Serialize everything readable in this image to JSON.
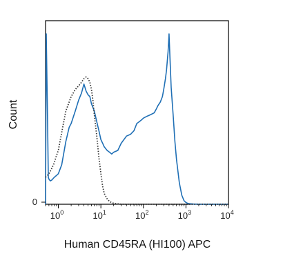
{
  "chart_data": {
    "type": "line",
    "title": "",
    "xlabel": "Human CD45RA (HI100) APC",
    "ylabel": "Count",
    "x_scale": "log",
    "xlim": [
      0.5,
      10000
    ],
    "ylim": [
      0,
      100
    ],
    "grid": false,
    "legend": "none",
    "x_ticks": [
      {
        "value": 1,
        "base": "10",
        "exp": "0"
      },
      {
        "value": 10,
        "base": "10",
        "exp": "1"
      },
      {
        "value": 100,
        "base": "10",
        "exp": "2"
      },
      {
        "value": 1000,
        "base": "10",
        "exp": "3"
      },
      {
        "value": 10000,
        "base": "10",
        "exp": "4"
      }
    ],
    "y_ticks": [
      {
        "value": 0,
        "label": "0"
      }
    ],
    "series": [
      {
        "style": "solid",
        "color": "#1f6fb5",
        "x": [
          0.5,
          0.52,
          0.55,
          0.58,
          0.6,
          0.65,
          0.7,
          0.8,
          0.9,
          1.0,
          1.2,
          1.5,
          1.8,
          2.0,
          2.5,
          3.0,
          3.5,
          4.0,
          4.5,
          5.0,
          5.5,
          6.0,
          7.0,
          8.0,
          9.0,
          10,
          11,
          12,
          14,
          16,
          18,
          20,
          25,
          30,
          40,
          50,
          60,
          70,
          80,
          90,
          100,
          120,
          150,
          180,
          200,
          220,
          250,
          280,
          300,
          330,
          350,
          380,
          400,
          420,
          450,
          500,
          550,
          600,
          700,
          800,
          900,
          1000,
          1100,
          1200,
          1500,
          2000,
          3000,
          5000,
          10000
        ],
        "y": [
          0,
          95,
          55,
          15,
          14,
          13,
          13.5,
          15,
          16,
          17,
          22,
          35,
          43,
          45,
          52,
          58,
          62,
          67,
          63,
          61,
          60,
          56,
          52,
          46,
          41,
          36,
          34,
          32,
          30,
          29,
          28,
          29,
          30,
          34,
          38,
          39,
          41,
          45,
          46,
          47,
          48,
          49,
          50,
          51,
          53,
          55,
          57,
          60,
          64,
          70,
          75,
          85,
          95,
          82,
          65,
          50,
          35,
          25,
          12,
          5,
          2,
          1,
          0.5,
          0.3,
          0.1,
          0,
          0,
          0,
          0
        ]
      },
      {
        "style": "dotted",
        "color": "#333333",
        "x": [
          0.5,
          0.6,
          0.7,
          0.8,
          0.9,
          1.0,
          1.2,
          1.5,
          2.0,
          2.5,
          3.0,
          3.5,
          4.0,
          4.5,
          5.0,
          5.5,
          6.0,
          6.5,
          7.0,
          8.0,
          9.0,
          10,
          11,
          12,
          14,
          16,
          20,
          30,
          50,
          10000
        ],
        "y": [
          15,
          17,
          20,
          23,
          27,
          30,
          40,
          52,
          60,
          64,
          66,
          68,
          70,
          71,
          70,
          68,
          64,
          58,
          50,
          38,
          26,
          17,
          10,
          6,
          3,
          1.5,
          0.5,
          0,
          0,
          0
        ]
      }
    ]
  }
}
